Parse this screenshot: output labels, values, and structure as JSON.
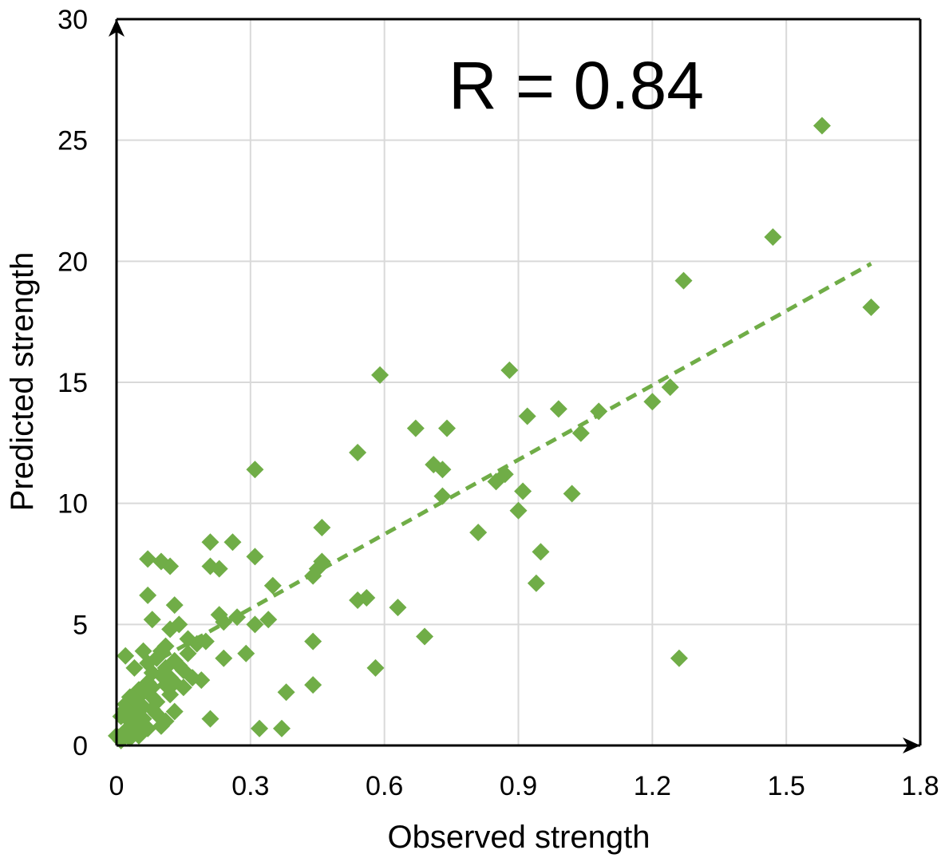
{
  "chart_data": {
    "type": "scatter",
    "title": "",
    "xlabel": "Observed strength",
    "ylabel": "Predicted strength",
    "annotation": "R = 0.84",
    "xlim": [
      0,
      1.8
    ],
    "ylim": [
      0,
      30
    ],
    "xticks": [
      0,
      0.3,
      0.6,
      0.9,
      1.2,
      1.5,
      1.8
    ],
    "xtick_labels": [
      "0",
      "0.3",
      "0.6",
      "0.9",
      "1.2",
      "1.5",
      "1.8"
    ],
    "yticks": [
      0,
      5,
      10,
      15,
      20,
      25,
      30
    ],
    "ytick_labels": [
      "0",
      "5",
      "10",
      "15",
      "20",
      "25",
      "30"
    ],
    "grid": true,
    "marker": "diamond",
    "color": "#70ad47",
    "trendline": {
      "style": "dashed",
      "x": [
        0.1,
        1.69
      ],
      "y": [
        3.6,
        19.9
      ]
    },
    "series": [
      {
        "points": [
          [
            1.58,
            25.6
          ],
          [
            1.47,
            21.0
          ],
          [
            1.27,
            19.2
          ],
          [
            1.69,
            18.1
          ],
          [
            1.24,
            14.8
          ],
          [
            1.2,
            14.2
          ],
          [
            1.08,
            13.8
          ],
          [
            1.04,
            12.9
          ],
          [
            0.99,
            13.9
          ],
          [
            0.92,
            13.6
          ],
          [
            0.88,
            15.5
          ],
          [
            0.59,
            15.3
          ],
          [
            0.67,
            13.1
          ],
          [
            0.74,
            13.1
          ],
          [
            0.54,
            12.1
          ],
          [
            0.31,
            11.4
          ],
          [
            0.71,
            11.6
          ],
          [
            0.73,
            11.4
          ],
          [
            0.87,
            11.2
          ],
          [
            0.85,
            10.9
          ],
          [
            0.73,
            10.3
          ],
          [
            0.91,
            10.5
          ],
          [
            1.02,
            10.4
          ],
          [
            0.9,
            9.7
          ],
          [
            0.46,
            9.0
          ],
          [
            0.81,
            8.8
          ],
          [
            0.95,
            8.0
          ],
          [
            0.94,
            6.7
          ],
          [
            1.26,
            3.6
          ],
          [
            0.63,
            5.7
          ],
          [
            0.69,
            4.5
          ],
          [
            0.58,
            3.2
          ],
          [
            0.54,
            6.0
          ],
          [
            0.56,
            6.1
          ],
          [
            0.46,
            7.6
          ],
          [
            0.45,
            7.3
          ],
          [
            0.44,
            7.0
          ],
          [
            0.31,
            7.8
          ],
          [
            0.35,
            6.6
          ],
          [
            0.34,
            5.2
          ],
          [
            0.31,
            5.0
          ],
          [
            0.26,
            8.4
          ],
          [
            0.21,
            8.4
          ],
          [
            0.21,
            7.4
          ],
          [
            0.23,
            7.3
          ],
          [
            0.27,
            5.3
          ],
          [
            0.23,
            5.4
          ],
          [
            0.24,
            5.1
          ],
          [
            0.24,
            3.6
          ],
          [
            0.29,
            3.8
          ],
          [
            0.44,
            4.3
          ],
          [
            0.44,
            2.5
          ],
          [
            0.38,
            2.2
          ],
          [
            0.32,
            0.7
          ],
          [
            0.37,
            0.7
          ],
          [
            0.21,
            1.1
          ],
          [
            0.07,
            7.7
          ],
          [
            0.1,
            7.6
          ],
          [
            0.12,
            7.4
          ],
          [
            0.07,
            6.2
          ],
          [
            0.13,
            5.8
          ],
          [
            0.08,
            5.2
          ],
          [
            0.14,
            5.0
          ],
          [
            0.12,
            4.8
          ],
          [
            0.18,
            4.2
          ],
          [
            0.2,
            4.3
          ],
          [
            0.16,
            3.8
          ],
          [
            0.13,
            3.5
          ],
          [
            0.1,
            3.9
          ],
          [
            0.06,
            3.9
          ],
          [
            0.02,
            3.7
          ],
          [
            0.04,
            3.2
          ],
          [
            0.08,
            3.0
          ],
          [
            0.11,
            3.2
          ],
          [
            0.15,
            3.1
          ],
          [
            0.17,
            2.8
          ],
          [
            0.19,
            2.7
          ],
          [
            0.15,
            2.4
          ],
          [
            0.11,
            2.5
          ],
          [
            0.07,
            2.6
          ],
          [
            0.05,
            2.3
          ],
          [
            0.03,
            2.0
          ],
          [
            0.08,
            2.0
          ],
          [
            0.12,
            2.1
          ],
          [
            0.09,
            1.8
          ],
          [
            0.06,
            1.6
          ],
          [
            0.04,
            1.4
          ],
          [
            0.02,
            1.7
          ],
          [
            0.01,
            1.2
          ],
          [
            0.03,
            1.0
          ],
          [
            0.06,
            1.1
          ],
          [
            0.09,
            1.3
          ],
          [
            0.11,
            1.0
          ],
          [
            0.13,
            1.4
          ],
          [
            0.05,
            0.8
          ],
          [
            0.02,
            0.6
          ],
          [
            0.0,
            0.4
          ],
          [
            0.04,
            0.5
          ],
          [
            0.07,
            0.7
          ],
          [
            0.1,
            0.8
          ],
          [
            0.01,
            0.2
          ],
          [
            0.03,
            0.3
          ],
          [
            0.05,
            0.4
          ],
          [
            0.08,
            1.5
          ],
          [
            0.12,
            2.8
          ],
          [
            0.14,
            3.3
          ],
          [
            0.16,
            4.4
          ],
          [
            0.11,
            4.1
          ],
          [
            0.09,
            3.6
          ],
          [
            0.07,
            3.4
          ],
          [
            0.1,
            2.9
          ],
          [
            0.13,
            2.6
          ],
          [
            0.06,
            2.2
          ],
          [
            0.04,
            1.9
          ],
          [
            0.02,
            1.5
          ],
          [
            0.08,
            2.4
          ]
        ]
      }
    ]
  }
}
